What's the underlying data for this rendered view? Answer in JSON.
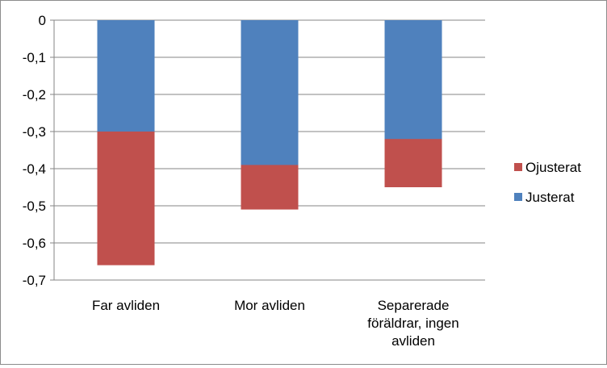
{
  "chart_data": {
    "type": "bar",
    "stacked": false,
    "overlapping": true,
    "categories": [
      [
        "Far avliden"
      ],
      [
        "Mor avliden"
      ],
      [
        "Separerade",
        "föräldrar, ingen",
        "avliden"
      ]
    ],
    "series": [
      {
        "name": "Ojusterat",
        "values": [
          -0.66,
          -0.51,
          -0.45
        ],
        "color": "#c0504d"
      },
      {
        "name": "Justerat",
        "values": [
          -0.3,
          -0.39,
          -0.32
        ],
        "color": "#4f81bd"
      }
    ],
    "ylim": [
      -0.7,
      0
    ],
    "yticks": [
      0,
      -0.1,
      -0.2,
      -0.3,
      -0.4,
      -0.5,
      -0.6,
      -0.7
    ],
    "ytick_labels": [
      "0",
      "-0,1",
      "-0,2",
      "-0,3",
      "-0,4",
      "-0,5",
      "-0,6",
      "-0,7"
    ],
    "grid": true,
    "legend_position": "right",
    "legend_order": [
      "Ojusterat",
      "Justerat"
    ],
    "title": "",
    "xlabel": "",
    "ylabel": ""
  }
}
